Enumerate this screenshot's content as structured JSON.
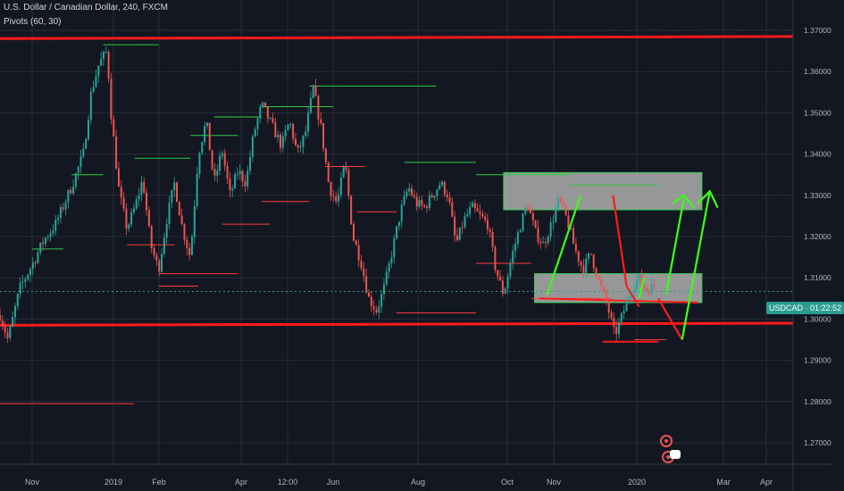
{
  "header": {
    "symbol_line": "U.S. Dollar / Canadian Dollar, 240, FXCM",
    "indicator_line": "Pivots (60, 30)"
  },
  "price_tag": {
    "symbol": "USDCAD",
    "countdown": "01:22:52",
    "price": 1.3067
  },
  "colors": {
    "background": "#131722",
    "grid": "#2a2e39",
    "up_candle": "#26a69a",
    "down_candle": "#ef5350",
    "level_line": "#ff1a1a",
    "pivot_high": "#2ecc40",
    "pivot_low": "#ff3b3b",
    "arrow": "#39ff14",
    "box_fill": "#b8b8b8",
    "price_line": "#2a9d8f"
  },
  "chart_data": {
    "type": "candlestick",
    "x_ticks": [
      "Nov",
      "2019",
      "Feb",
      "Apr",
      "12:00",
      "Jun",
      "Aug",
      "Oct",
      "Nov",
      "2020",
      "Mar",
      "Apr"
    ],
    "y_ticks": [
      "1.37000",
      "1.36000",
      "1.35000",
      "1.34000",
      "1.33000",
      "1.32000",
      "1.31000",
      "1.30000",
      "1.29000",
      "1.28000",
      "1.27000"
    ],
    "ylim": [
      1.2695,
      1.3745
    ],
    "path": [
      [
        0,
        1.301
      ],
      [
        0.01,
        1.295
      ],
      [
        0.025,
        1.3075
      ],
      [
        0.04,
        1.313
      ],
      [
        0.055,
        1.319
      ],
      [
        0.07,
        1.323
      ],
      [
        0.09,
        1.332
      ],
      [
        0.105,
        1.34
      ],
      [
        0.115,
        1.355
      ],
      [
        0.125,
        1.362
      ],
      [
        0.135,
        1.365
      ],
      [
        0.14,
        1.35
      ],
      [
        0.15,
        1.331
      ],
      [
        0.16,
        1.322
      ],
      [
        0.17,
        1.327
      ],
      [
        0.18,
        1.334
      ],
      [
        0.19,
        1.318
      ],
      [
        0.2,
        1.312
      ],
      [
        0.21,
        1.324
      ],
      [
        0.22,
        1.333
      ],
      [
        0.23,
        1.322
      ],
      [
        0.24,
        1.315
      ],
      [
        0.25,
        1.34
      ],
      [
        0.26,
        1.348
      ],
      [
        0.27,
        1.333
      ],
      [
        0.28,
        1.341
      ],
      [
        0.29,
        1.33
      ],
      [
        0.3,
        1.336
      ],
      [
        0.31,
        1.333
      ],
      [
        0.32,
        1.345
      ],
      [
        0.33,
        1.352
      ],
      [
        0.345,
        1.346
      ],
      [
        0.355,
        1.342
      ],
      [
        0.365,
        1.348
      ],
      [
        0.375,
        1.34
      ],
      [
        0.385,
        1.345
      ],
      [
        0.395,
        1.356
      ],
      [
        0.405,
        1.346
      ],
      [
        0.415,
        1.332
      ],
      [
        0.425,
        1.328
      ],
      [
        0.435,
        1.338
      ],
      [
        0.445,
        1.32
      ],
      [
        0.455,
        1.314
      ],
      [
        0.465,
        1.305
      ],
      [
        0.475,
        1.302
      ],
      [
        0.485,
        1.308
      ],
      [
        0.495,
        1.317
      ],
      [
        0.505,
        1.326
      ],
      [
        0.515,
        1.332
      ],
      [
        0.525,
        1.328
      ],
      [
        0.535,
        1.327
      ],
      [
        0.545,
        1.33
      ],
      [
        0.555,
        1.333
      ],
      [
        0.565,
        1.33
      ],
      [
        0.575,
        1.318
      ],
      [
        0.585,
        1.324
      ],
      [
        0.595,
        1.327
      ],
      [
        0.605,
        1.325
      ],
      [
        0.615,
        1.323
      ],
      [
        0.625,
        1.312
      ],
      [
        0.635,
        1.306
      ],
      [
        0.645,
        1.315
      ],
      [
        0.655,
        1.322
      ],
      [
        0.665,
        1.328
      ],
      [
        0.675,
        1.321
      ],
      [
        0.685,
        1.318
      ],
      [
        0.695,
        1.323
      ],
      [
        0.705,
        1.329
      ],
      [
        0.715,
        1.324
      ],
      [
        0.725,
        1.317
      ],
      [
        0.735,
        1.312
      ],
      [
        0.745,
        1.316
      ],
      [
        0.755,
        1.309
      ],
      [
        0.765,
        1.304
      ],
      [
        0.775,
        1.296
      ],
      [
        0.785,
        1.301
      ],
      [
        0.795,
        1.307
      ],
      [
        0.805,
        1.31
      ],
      [
        0.815,
        1.307
      ],
      [
        0.825,
        1.308
      ]
    ],
    "levels": [
      1.368,
      1.2985
    ],
    "boxes": [
      {
        "from": 0.635,
        "to": 0.885,
        "y1": 1.3355,
        "y2": 1.3265
      },
      {
        "from": 0.674,
        "to": 0.885,
        "y1": 1.311,
        "y2": 1.304
      }
    ]
  }
}
